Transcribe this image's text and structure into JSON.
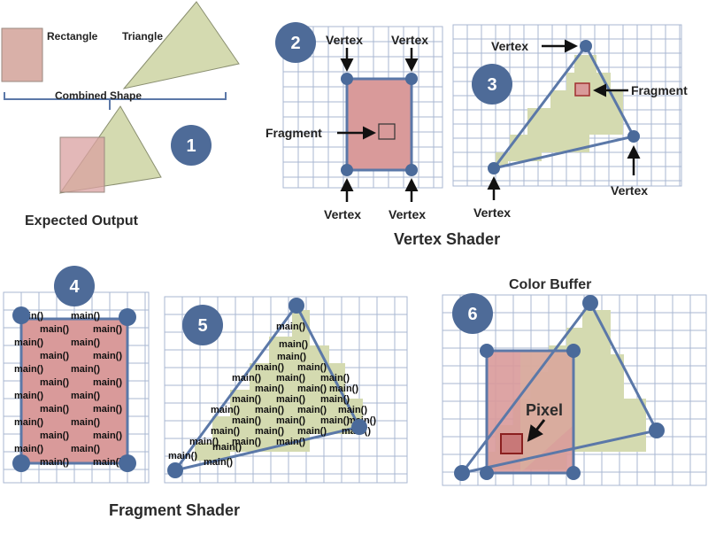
{
  "colors": {
    "rect_fill": "#d99a9a",
    "tri_fill": "#d4dab0",
    "vertex": "#4a6a9a",
    "edge": "#5b78a8",
    "grid": "#a9b7d2",
    "badge": "#4e6b98"
  },
  "panel1": {
    "badge": "1",
    "rectangle_label": "Rectangle",
    "triangle_label": "Triangle",
    "combined_label": "Combined Shape",
    "caption": "Expected Output"
  },
  "panel2": {
    "badge": "2",
    "vertex_tl": "Vertex",
    "vertex_tr": "Vertex",
    "vertex_bl": "Vertex",
    "vertex_br": "Vertex",
    "fragment": "Fragment"
  },
  "panel3": {
    "badge": "3",
    "vertex_top": "Vertex",
    "vertex_right": "Vertex",
    "vertex_left": "Vertex",
    "fragment": "Fragment"
  },
  "vertex_shader_caption": "Vertex Shader",
  "panel4": {
    "badge": "4",
    "main_text": "main()"
  },
  "panel5": {
    "badge": "5",
    "main_text": "main()"
  },
  "fragment_shader_caption": "Fragment Shader",
  "panel6": {
    "badge": "6",
    "caption": "Color Buffer",
    "pixel": "Pixel"
  }
}
